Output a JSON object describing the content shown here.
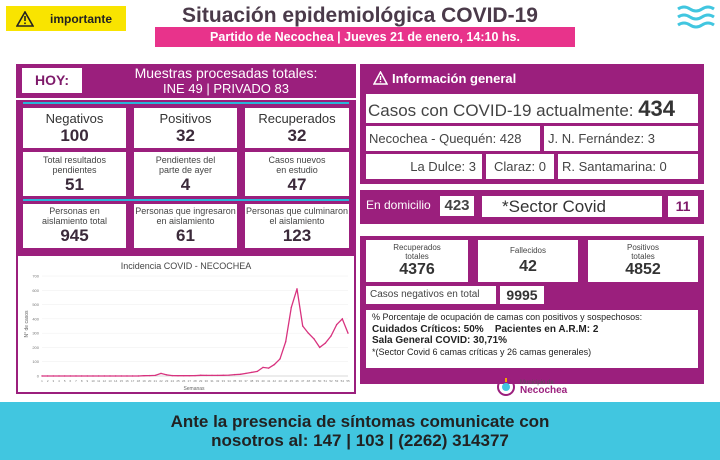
{
  "header": {
    "badge_label": "importante",
    "title": "Situación epidemiológica COVID-19",
    "subtitle": "Partido de Necochea | Jueves 21 de enero, 14:10 hs."
  },
  "hoy": {
    "label": "HOY:",
    "line1": "Muestras procesadas totales:",
    "line2": "INE 49 | PRIVADO 83"
  },
  "stats": {
    "row1": [
      {
        "label": "Negativos",
        "value": "100"
      },
      {
        "label": "Positivos",
        "value": "32"
      },
      {
        "label": "Recuperados",
        "value": "32"
      }
    ],
    "row2": [
      {
        "label": "Total resultados pendientes",
        "value": "51"
      },
      {
        "label": "Pendientes del parte de ayer",
        "value": "4"
      },
      {
        "label": "Casos nuevos en estudio",
        "value": "47"
      }
    ],
    "row3": [
      {
        "label": "Personas en aislamiento total",
        "value": "945"
      },
      {
        "label": "Personas que ingresaron en aislamiento",
        "value": "61"
      },
      {
        "label": "Personas que culminaron el aislamiento",
        "value": "123"
      }
    ]
  },
  "chart_data": {
    "type": "line",
    "title": "Incidencia COVID - NECOCHEA",
    "xlabel": "Semanas",
    "ylabel": "N° de casos",
    "ylim": [
      0,
      700
    ],
    "yticks": [
      "0",
      "100",
      "200",
      "300",
      "400",
      "500",
      "600",
      "700"
    ],
    "x": [
      1,
      2,
      3,
      4,
      5,
      6,
      7,
      8,
      9,
      10,
      11,
      12,
      13,
      14,
      15,
      16,
      17,
      18,
      19,
      20,
      21,
      22,
      23,
      24,
      25,
      26,
      27,
      28,
      29,
      30,
      31,
      32,
      33,
      34,
      35,
      36,
      37,
      38,
      39,
      40,
      41,
      42,
      43,
      44,
      45,
      46,
      47,
      48,
      49,
      50,
      51,
      52,
      53,
      54,
      55
    ],
    "series": [
      {
        "values": [
          0,
          0,
          0,
          0,
          0,
          0,
          0,
          0,
          0,
          0,
          0,
          0,
          0,
          0,
          0,
          0,
          0,
          0,
          2,
          3,
          4,
          18,
          8,
          3,
          2,
          2,
          2,
          3,
          5,
          4,
          4,
          4,
          5,
          6,
          10,
          12,
          18,
          25,
          32,
          60,
          55,
          80,
          120,
          240,
          480,
          610,
          350,
          300,
          260,
          200,
          230,
          280,
          360,
          400,
          300
        ]
      }
    ]
  },
  "info": {
    "header": "Información general",
    "casos_label": "Casos con COVID-19 actualmente:",
    "casos_value": "434",
    "necochea": "Necochea - Quequén: 428",
    "jn": "J. N. Fernández: 3",
    "dulce": "La Dulce: 3",
    "claraz": "Claraz: 0",
    "rsanta": "R. Santamarina: 0",
    "domicilio_label": "En domicilio",
    "domicilio_value": "423",
    "sector_label": "*Sector Covid",
    "sector_value": "11",
    "recuperados_label": "Recuperados totales",
    "recuperados_value": "4376",
    "fallecidos_label": "Fallecidos",
    "fallecidos_value": "42",
    "positivos_label": "Positivos totales",
    "positivos_value": "4852",
    "negativos_label": "Casos negativos en total",
    "negativos_value": "9995"
  },
  "camas": {
    "line1": "% Porcentaje de ocupación de camas con positivos y sospechosos:",
    "line2a": "Cuidados Críticos: 50%",
    "line2b": "Pacientes en A.R.M: 2",
    "line3": "Sala General COVID: 30,71%",
    "line4": "*(Sector Covid 6 camas críticas y 26 camas generales)"
  },
  "logo": {
    "small": "Municipio de",
    "name": "Necochea"
  },
  "footer": {
    "line1": "Ante la presencia de síntomas comunicate con",
    "line2": "nosotros al: 147 | 103 | (2262) 314377"
  }
}
